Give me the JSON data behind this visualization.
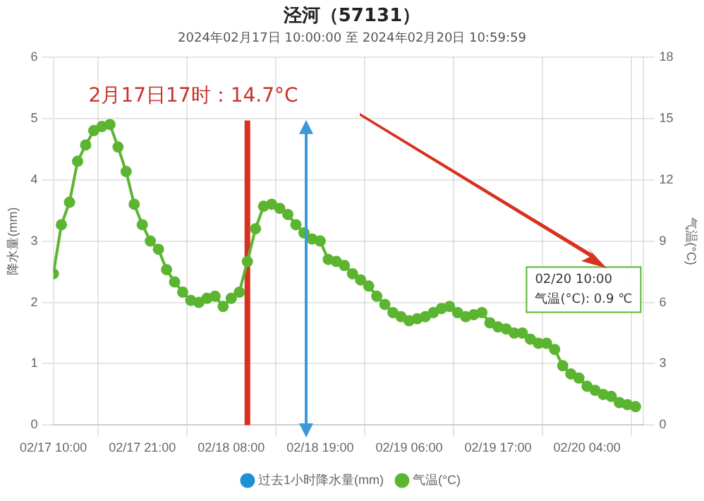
{
  "chart_data": {
    "type": "line",
    "title": "泾河（57131）",
    "subtitle": "2024年02月17日 10:00:00 至 2024年02月20日 10:59:59",
    "ylabel": "降水量(mm)",
    "y2label": "气温(°C)",
    "annotations": [
      "2月17日17时：14.7°C",
      "02/20 10:00\n气温(°C): 0.9 ℃"
    ],
    "x": [
      "2024-02-17T10:00",
      "2024-02-17T11:00",
      "2024-02-17T12:00",
      "2024-02-17T13:00",
      "2024-02-17T14:00",
      "2024-02-17T15:00",
      "2024-02-17T16:00",
      "2024-02-17T17:00",
      "2024-02-17T18:00",
      "2024-02-17T19:00",
      "2024-02-17T20:00",
      "2024-02-17T21:00",
      "2024-02-17T22:00",
      "2024-02-17T23:00",
      "2024-02-18T00:00",
      "2024-02-18T01:00",
      "2024-02-18T02:00",
      "2024-02-18T03:00",
      "2024-02-18T04:00",
      "2024-02-18T05:00",
      "2024-02-18T06:00",
      "2024-02-18T07:00",
      "2024-02-18T08:00",
      "2024-02-18T09:00",
      "2024-02-18T10:00",
      "2024-02-18T11:00",
      "2024-02-18T12:00",
      "2024-02-18T13:00",
      "2024-02-18T14:00",
      "2024-02-18T15:00",
      "2024-02-18T16:00",
      "2024-02-18T17:00",
      "2024-02-18T18:00",
      "2024-02-18T19:00",
      "2024-02-18T20:00",
      "2024-02-18T21:00",
      "2024-02-18T22:00",
      "2024-02-18T23:00",
      "2024-02-19T00:00",
      "2024-02-19T01:00",
      "2024-02-19T02:00",
      "2024-02-19T03:00",
      "2024-02-19T04:00",
      "2024-02-19T05:00",
      "2024-02-19T06:00",
      "2024-02-19T07:00",
      "2024-02-19T08:00",
      "2024-02-19T09:00",
      "2024-02-19T10:00",
      "2024-02-19T11:00",
      "2024-02-19T12:00",
      "2024-02-19T13:00",
      "2024-02-19T14:00",
      "2024-02-19T15:00",
      "2024-02-19T16:00",
      "2024-02-19T17:00",
      "2024-02-19T18:00",
      "2024-02-19T19:00",
      "2024-02-19T20:00",
      "2024-02-19T21:00",
      "2024-02-19T22:00",
      "2024-02-19T23:00",
      "2024-02-20T00:00",
      "2024-02-20T01:00",
      "2024-02-20T02:00",
      "2024-02-20T03:00",
      "2024-02-20T04:00",
      "2024-02-20T05:00",
      "2024-02-20T06:00",
      "2024-02-20T07:00",
      "2024-02-20T08:00",
      "2024-02-20T09:00",
      "2024-02-20T10:00"
    ],
    "series": [
      {
        "name": "过去1小时降水量(mm)",
        "type": "bar",
        "color": "#1f8fd6",
        "values": [
          0,
          0,
          0,
          0,
          0,
          0,
          0,
          0,
          0,
          0,
          0,
          0,
          0,
          0,
          0,
          0,
          0,
          0,
          0,
          0,
          0,
          0,
          0,
          0,
          0,
          0,
          0,
          0,
          0,
          0,
          0,
          0,
          0,
          0,
          0,
          0,
          0,
          0,
          0,
          0,
          0,
          0,
          0,
          0,
          0,
          0,
          0,
          0,
          0,
          0,
          0,
          0,
          0,
          0,
          0,
          0,
          0,
          0,
          0,
          0,
          0,
          0,
          0,
          0,
          0,
          0,
          0,
          0,
          0,
          0,
          0,
          0,
          0
        ]
      },
      {
        "name": "气温(°C)",
        "axis": "y2",
        "color": "#5cb531",
        "values": [
          7.4,
          9.8,
          10.9,
          12.9,
          13.7,
          14.4,
          14.6,
          14.7,
          13.6,
          12.4,
          10.8,
          9.8,
          9.0,
          8.6,
          7.6,
          7.0,
          6.5,
          6.1,
          6.0,
          6.2,
          6.3,
          5.8,
          6.2,
          6.5,
          8.0,
          9.6,
          10.7,
          10.8,
          10.6,
          10.3,
          9.8,
          9.4,
          9.1,
          9.0,
          8.1,
          8.0,
          7.8,
          7.4,
          7.1,
          6.8,
          6.3,
          5.9,
          5.5,
          5.3,
          5.1,
          5.2,
          5.3,
          5.5,
          5.7,
          5.8,
          5.5,
          5.3,
          5.4,
          5.5,
          5.0,
          4.8,
          4.7,
          4.5,
          4.5,
          4.2,
          4.0,
          4.0,
          3.7,
          2.9,
          2.5,
          2.3,
          1.9,
          1.7,
          1.5,
          1.4,
          1.1,
          1.0,
          0.9
        ]
      }
    ],
    "xlim": [
      "2024-02-17T10:00",
      "2024-02-20T11:00"
    ],
    "xticks": [
      {
        "value": "2024-02-17T10:00",
        "label": "02/17 10:00"
      },
      {
        "value": "2024-02-17T21:00",
        "label": "02/17 21:00"
      },
      {
        "value": "2024-02-18T08:00",
        "label": "02/18 08:00"
      },
      {
        "value": "2024-02-18T19:00",
        "label": "02/18 19:00"
      },
      {
        "value": "2024-02-19T06:00",
        "label": "02/19 06:00"
      },
      {
        "value": "2024-02-19T17:00",
        "label": "02/19 17:00"
      },
      {
        "value": "2024-02-20T04:00",
        "label": "02/20 04:00"
      }
    ],
    "ylim": [
      0,
      6
    ],
    "yticks": [
      0,
      1,
      2,
      3,
      4,
      5,
      6
    ],
    "y2lim": [
      0,
      18
    ],
    "y2ticks": [
      0,
      3,
      6,
      9,
      12,
      15,
      18
    ],
    "ref_lines": [
      {
        "axis": "x",
        "value": "2024-02-18T10:00",
        "color": "#d9301f"
      }
    ],
    "grid": true,
    "legend": "bottom",
    "marker": "circle",
    "line_style": "solid"
  }
}
